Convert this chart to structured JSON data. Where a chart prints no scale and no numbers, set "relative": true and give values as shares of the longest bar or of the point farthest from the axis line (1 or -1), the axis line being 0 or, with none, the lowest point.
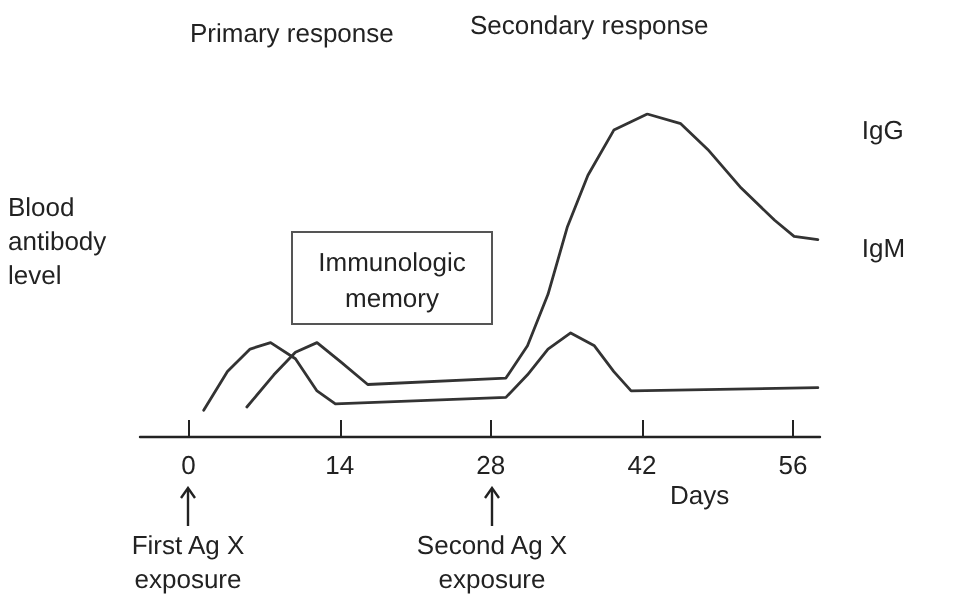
{
  "chart_data": {
    "type": "line",
    "relative": true,
    "xlabel": "Days",
    "ylabel": "Blood antibody level",
    "xlim": [
      -4.5,
      58.5
    ],
    "xticks": [
      0,
      14,
      28,
      42,
      56
    ],
    "grid": false,
    "legend": false,
    "marker": "none",
    "line_style": "solid",
    "series": [
      {
        "name": "IgG",
        "color": "#333333",
        "x": [
          5.4,
          7.9,
          9.9,
          11.9,
          14.1,
          16.6,
          29.4,
          31.4,
          33.3,
          35.1,
          37.0,
          39.4,
          42.5,
          45.6,
          48.1,
          51.2,
          54.3,
          56.1,
          58.3
        ],
        "values": [
          0.09,
          0.19,
          0.26,
          0.29,
          0.23,
          0.16,
          0.18,
          0.28,
          0.44,
          0.65,
          0.81,
          0.95,
          1,
          0.97,
          0.89,
          0.77,
          0.67,
          0.62,
          0.61
        ]
      },
      {
        "name": "IgM",
        "color": "#333333",
        "x": [
          1.4,
          3.6,
          5.7,
          7.6,
          9.9,
          11.9,
          13.6,
          29.4,
          31.4,
          33.3,
          35.4,
          37.6,
          39.4,
          41.0,
          58.3
        ],
        "values": [
          0.08,
          0.2,
          0.27,
          0.29,
          0.24,
          0.14,
          0.1,
          0.12,
          0.19,
          0.27,
          0.32,
          0.28,
          0.2,
          0.14,
          0.15
        ]
      }
    ],
    "annotations": [
      "Primary response",
      "Secondary response",
      "Immunologic\nmemory",
      "First Ag X\nexposure",
      "Second Ag X\nexposure"
    ]
  }
}
